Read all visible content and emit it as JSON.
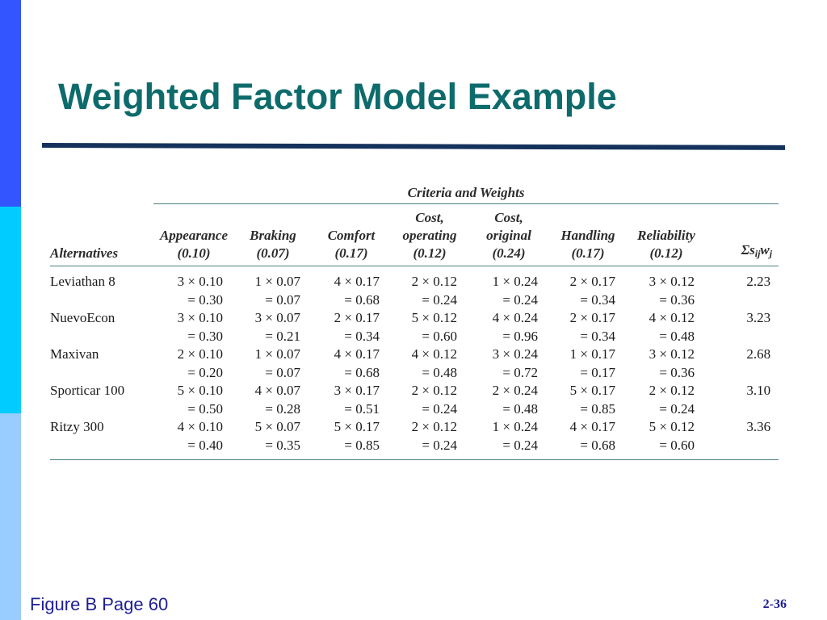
{
  "slide": {
    "title": "Weighted Factor Model Example",
    "colors": {
      "title": "#0e6b6b",
      "rule": "#14325c",
      "sidebar": [
        "#3355ff",
        "#00ccff",
        "#99ccff"
      ],
      "footer": "#1e1e96"
    }
  },
  "table": {
    "group_header": "Criteria and Weights",
    "alternatives_header": "Alternatives",
    "criteria": [
      {
        "lines": [
          "Appearance",
          "(0.10)"
        ],
        "weight": 0.1
      },
      {
        "lines": [
          "Braking",
          "(0.07)"
        ],
        "weight": 0.07
      },
      {
        "lines": [
          "Comfort",
          "(0.17)"
        ],
        "weight": 0.17
      },
      {
        "lines": [
          "Cost,",
          "operating",
          "(0.12)"
        ],
        "weight": 0.12
      },
      {
        "lines": [
          "Cost,",
          "original",
          "(0.24)"
        ],
        "weight": 0.24
      },
      {
        "lines": [
          "Handling",
          "(0.17)"
        ],
        "weight": 0.17
      },
      {
        "lines": [
          "Reliability",
          "(0.12)"
        ],
        "weight": 0.12
      }
    ],
    "sum_header": {
      "symbol": "Σs",
      "sub_s": "ij",
      "w": "w",
      "sub_w": "j"
    },
    "rows": [
      {
        "name": "Leviathan 8",
        "total": "2.23",
        "cells": [
          {
            "product": "3 × 0.10",
            "result": "= 0.30"
          },
          {
            "product": "1 × 0.07",
            "result": "= 0.07"
          },
          {
            "product": "4 × 0.17",
            "result": "= 0.68"
          },
          {
            "product": "2 × 0.12",
            "result": "= 0.24"
          },
          {
            "product": "1 × 0.24",
            "result": "= 0.24"
          },
          {
            "product": "2 × 0.17",
            "result": "= 0.34"
          },
          {
            "product": "3 × 0.12",
            "result": "= 0.36"
          }
        ]
      },
      {
        "name": "NuevoEcon",
        "total": "3.23",
        "cells": [
          {
            "product": "3 × 0.10",
            "result": "= 0.30"
          },
          {
            "product": "3 × 0.07",
            "result": "= 0.21"
          },
          {
            "product": "2 × 0.17",
            "result": "= 0.34"
          },
          {
            "product": "5 × 0.12",
            "result": "= 0.60"
          },
          {
            "product": "4 × 0.24",
            "result": "= 0.96"
          },
          {
            "product": "2 × 0.17",
            "result": "= 0.34"
          },
          {
            "product": "4 × 0.12",
            "result": "= 0.48"
          }
        ]
      },
      {
        "name": "Maxivan",
        "total": "2.68",
        "cells": [
          {
            "product": "2 × 0.10",
            "result": "= 0.20"
          },
          {
            "product": "1 × 0.07",
            "result": "= 0.07"
          },
          {
            "product": "4 × 0.17",
            "result": "= 0.68"
          },
          {
            "product": "4 × 0.12",
            "result": "= 0.48"
          },
          {
            "product": "3 × 0.24",
            "result": "= 0.72"
          },
          {
            "product": "1 × 0.17",
            "result": "= 0.17"
          },
          {
            "product": "3 × 0.12",
            "result": "= 0.36"
          }
        ]
      },
      {
        "name": "Sporticar 100",
        "total": "3.10",
        "cells": [
          {
            "product": "5 × 0.10",
            "result": "= 0.50"
          },
          {
            "product": "4 × 0.07",
            "result": "= 0.28"
          },
          {
            "product": "3 × 0.17",
            "result": "= 0.51"
          },
          {
            "product": "2 × 0.12",
            "result": "= 0.24"
          },
          {
            "product": "2 × 0.24",
            "result": "= 0.48"
          },
          {
            "product": "5 × 0.17",
            "result": "= 0.85"
          },
          {
            "product": "2 × 0.12",
            "result": "= 0.24"
          }
        ]
      },
      {
        "name": "Ritzy 300",
        "total": "3.36",
        "cells": [
          {
            "product": "4 × 0.10",
            "result": "= 0.40"
          },
          {
            "product": "5 × 0.07",
            "result": "= 0.35"
          },
          {
            "product": "5 × 0.17",
            "result": "= 0.85"
          },
          {
            "product": "2 × 0.12",
            "result": "= 0.24"
          },
          {
            "product": "1 × 0.24",
            "result": "= 0.24"
          },
          {
            "product": "4 × 0.17",
            "result": "= 0.68"
          },
          {
            "product": "5 × 0.12",
            "result": "= 0.60"
          }
        ]
      }
    ]
  },
  "footer": {
    "left": "Figure B Page 60",
    "right": "2-36"
  }
}
